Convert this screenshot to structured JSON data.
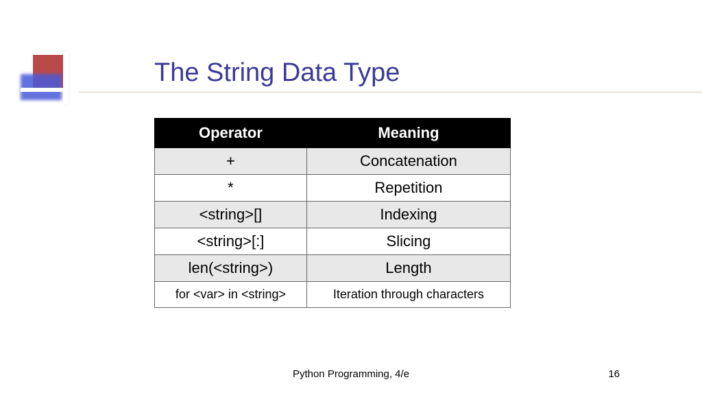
{
  "slide": {
    "title": "The String Data Type",
    "title_color": "#3a3a99",
    "title_fontsize": 38,
    "underline_color": "#eeeade",
    "background_color": "#ffffff"
  },
  "logo": {
    "red_color": "#b84a4a",
    "blue_color": "#4a5ad8"
  },
  "table": {
    "columns": [
      "Operator",
      "Meaning"
    ],
    "header_bg": "#000000",
    "header_color": "#ffffff",
    "header_fontsize": 22,
    "cell_fontsize": 22,
    "last_row_fontsize": 18,
    "border_color": "#666666",
    "shaded_bg": "#e8e8e8",
    "white_bg": "#ffffff",
    "rows": [
      {
        "operator": "+",
        "meaning": "Concatenation",
        "shaded": true
      },
      {
        "operator": "*",
        "meaning": "Repetition",
        "shaded": false
      },
      {
        "operator": "<string>[]",
        "meaning": "Indexing",
        "shaded": true
      },
      {
        "operator": "<string>[:]",
        "meaning": "Slicing",
        "shaded": false
      },
      {
        "operator": "len(<string>)",
        "meaning": "Length",
        "shaded": true
      },
      {
        "operator": "for <var> in <string>",
        "meaning": "Iteration through characters",
        "shaded": false,
        "last": true
      }
    ]
  },
  "footer": {
    "text": "Python Programming, 4/e",
    "page_number": "16",
    "fontsize": 15
  }
}
